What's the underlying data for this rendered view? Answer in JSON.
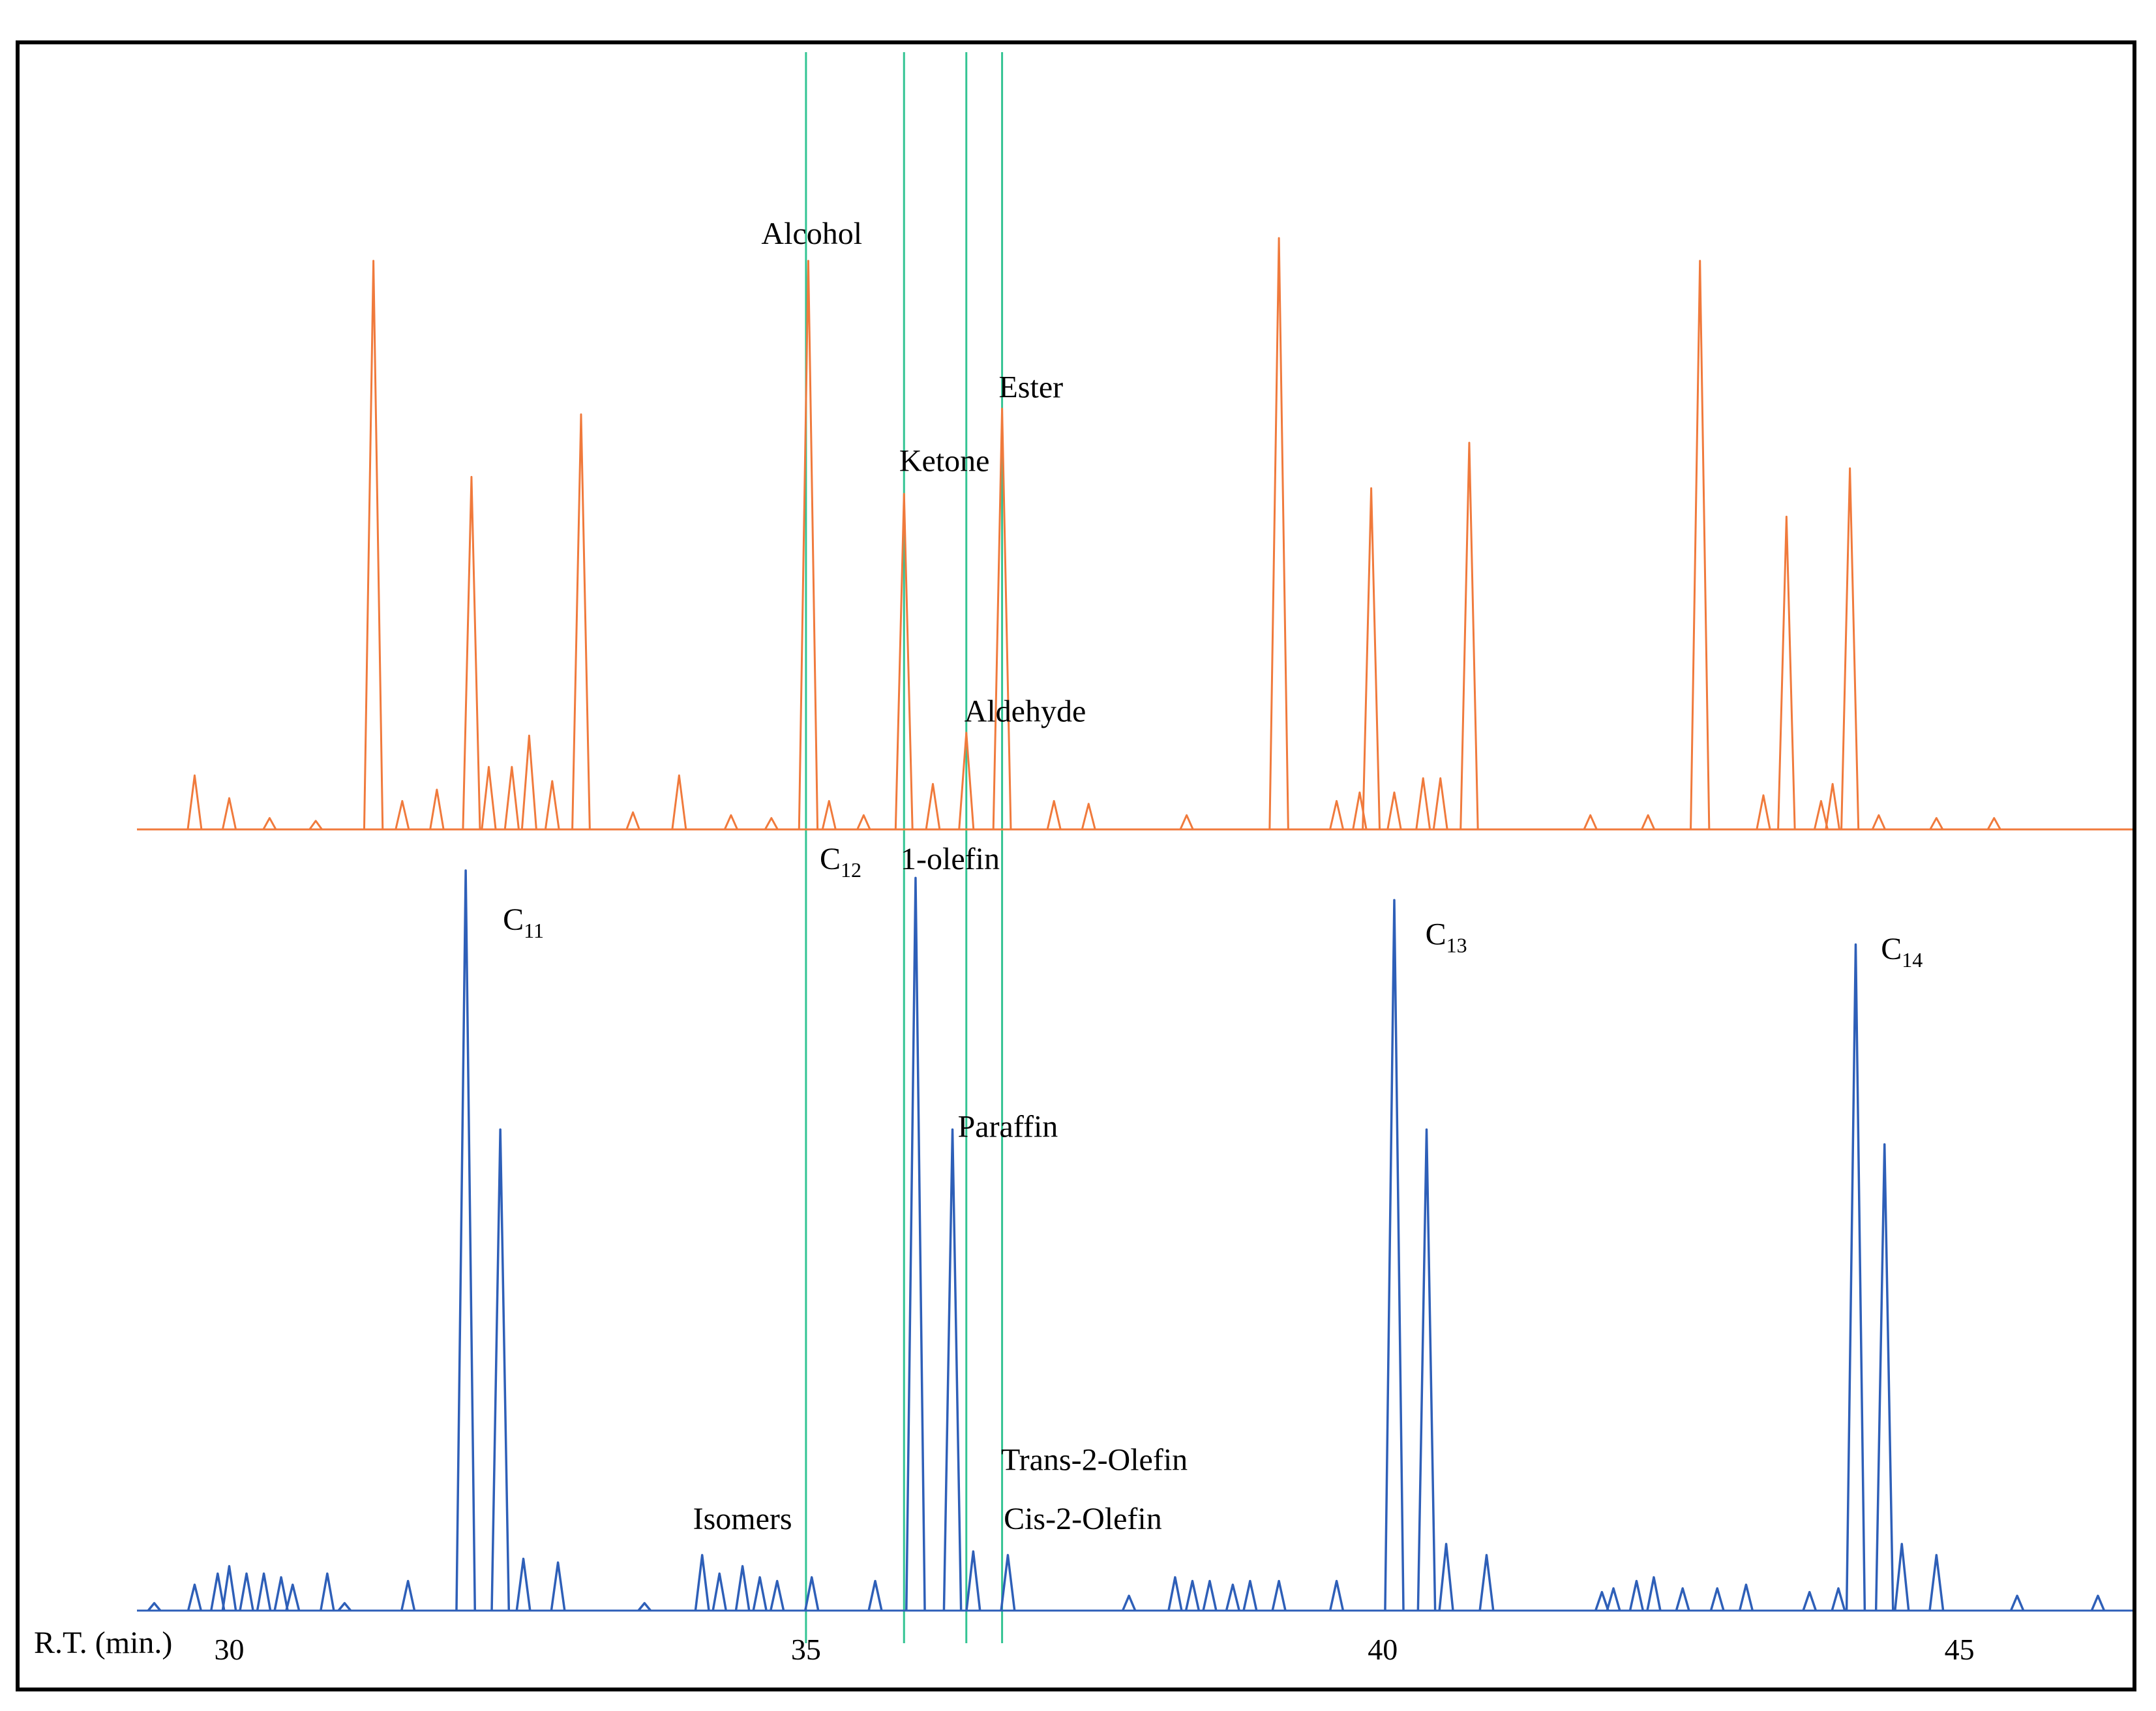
{
  "chart_data": {
    "type": "line",
    "title": "",
    "xlabel": "R.T. (min.)",
    "xlim": [
      29.2,
      46.5
    ],
    "x_ticks": [
      {
        "value": 30,
        "label": "30"
      },
      {
        "value": 35,
        "label": "35"
      },
      {
        "value": 40,
        "label": "40"
      },
      {
        "value": 45,
        "label": "45"
      }
    ],
    "colors": {
      "upper_trace": "#f07a3c",
      "lower_trace": "#2e5fb8",
      "marker_lines": "#33c493",
      "frame": "#000000"
    },
    "marker_lines_rt": [
      35.0,
      35.85,
      36.39,
      36.7
    ],
    "series": [
      {
        "key": "upper",
        "relative_scale_max": 1.0,
        "peaks": [
          {
            "rt": 29.7,
            "h": 0.095
          },
          {
            "rt": 30.0,
            "h": 0.055
          },
          {
            "rt": 30.35,
            "h": 0.02
          },
          {
            "rt": 30.75,
            "h": 0.015
          },
          {
            "rt": 31.25,
            "h": 1.0
          },
          {
            "rt": 31.5,
            "h": 0.05
          },
          {
            "rt": 31.8,
            "h": 0.07
          },
          {
            "rt": 32.1,
            "h": 0.62
          },
          {
            "rt": 32.25,
            "h": 0.11
          },
          {
            "rt": 32.45,
            "h": 0.11
          },
          {
            "rt": 32.6,
            "h": 0.165
          },
          {
            "rt": 32.8,
            "h": 0.085
          },
          {
            "rt": 33.05,
            "h": 0.73
          },
          {
            "rt": 33.5,
            "h": 0.03
          },
          {
            "rt": 33.9,
            "h": 0.095
          },
          {
            "rt": 34.35,
            "h": 0.025
          },
          {
            "rt": 34.7,
            "h": 0.02
          },
          {
            "rt": 35.02,
            "h": 1.0
          },
          {
            "rt": 35.2,
            "h": 0.05
          },
          {
            "rt": 35.5,
            "h": 0.025
          },
          {
            "rt": 35.85,
            "h": 0.59
          },
          {
            "rt": 36.1,
            "h": 0.08
          },
          {
            "rt": 36.39,
            "h": 0.17
          },
          {
            "rt": 36.7,
            "h": 0.74
          },
          {
            "rt": 37.15,
            "h": 0.05
          },
          {
            "rt": 37.45,
            "h": 0.045
          },
          {
            "rt": 38.3,
            "h": 0.025
          },
          {
            "rt": 39.1,
            "h": 1.04
          },
          {
            "rt": 39.6,
            "h": 0.05
          },
          {
            "rt": 39.8,
            "h": 0.065
          },
          {
            "rt": 39.9,
            "h": 0.6
          },
          {
            "rt": 40.1,
            "h": 0.065
          },
          {
            "rt": 40.35,
            "h": 0.09
          },
          {
            "rt": 40.5,
            "h": 0.09
          },
          {
            "rt": 40.75,
            "h": 0.68
          },
          {
            "rt": 41.8,
            "h": 0.025
          },
          {
            "rt": 42.3,
            "h": 0.025
          },
          {
            "rt": 42.75,
            "h": 1.0
          },
          {
            "rt": 43.3,
            "h": 0.06
          },
          {
            "rt": 43.5,
            "h": 0.55
          },
          {
            "rt": 43.8,
            "h": 0.05
          },
          {
            "rt": 43.9,
            "h": 0.08
          },
          {
            "rt": 44.05,
            "h": 0.635
          },
          {
            "rt": 44.3,
            "h": 0.025
          },
          {
            "rt": 44.8,
            "h": 0.02
          },
          {
            "rt": 45.3,
            "h": 0.02
          }
        ]
      },
      {
        "key": "lower",
        "relative_scale_max": 1.0,
        "peaks": [
          {
            "rt": 29.35,
            "h": 0.01
          },
          {
            "rt": 29.7,
            "h": 0.035
          },
          {
            "rt": 29.9,
            "h": 0.05
          },
          {
            "rt": 30.0,
            "h": 0.06
          },
          {
            "rt": 30.15,
            "h": 0.05
          },
          {
            "rt": 30.3,
            "h": 0.05
          },
          {
            "rt": 30.45,
            "h": 0.045
          },
          {
            "rt": 30.55,
            "h": 0.035
          },
          {
            "rt": 30.85,
            "h": 0.05
          },
          {
            "rt": 31.0,
            "h": 0.01
          },
          {
            "rt": 31.55,
            "h": 0.04
          },
          {
            "rt": 32.05,
            "h": 1.0
          },
          {
            "rt": 32.35,
            "h": 0.65
          },
          {
            "rt": 32.55,
            "h": 0.07
          },
          {
            "rt": 32.85,
            "h": 0.065
          },
          {
            "rt": 33.6,
            "h": 0.01
          },
          {
            "rt": 34.1,
            "h": 0.075
          },
          {
            "rt": 34.25,
            "h": 0.05
          },
          {
            "rt": 34.45,
            "h": 0.06
          },
          {
            "rt": 34.6,
            "h": 0.045
          },
          {
            "rt": 34.75,
            "h": 0.04
          },
          {
            "rt": 35.05,
            "h": 0.045
          },
          {
            "rt": 35.6,
            "h": 0.04
          },
          {
            "rt": 35.95,
            "h": 0.99
          },
          {
            "rt": 36.27,
            "h": 0.65
          },
          {
            "rt": 36.45,
            "h": 0.08
          },
          {
            "rt": 36.75,
            "h": 0.075
          },
          {
            "rt": 37.8,
            "h": 0.02
          },
          {
            "rt": 38.2,
            "h": 0.045
          },
          {
            "rt": 38.35,
            "h": 0.04
          },
          {
            "rt": 38.5,
            "h": 0.04
          },
          {
            "rt": 38.7,
            "h": 0.035
          },
          {
            "rt": 38.85,
            "h": 0.04
          },
          {
            "rt": 39.1,
            "h": 0.04
          },
          {
            "rt": 39.6,
            "h": 0.04
          },
          {
            "rt": 40.1,
            "h": 0.96
          },
          {
            "rt": 40.38,
            "h": 0.65
          },
          {
            "rt": 40.55,
            "h": 0.09
          },
          {
            "rt": 40.9,
            "h": 0.075
          },
          {
            "rt": 41.9,
            "h": 0.025
          },
          {
            "rt": 42.0,
            "h": 0.03
          },
          {
            "rt": 42.2,
            "h": 0.04
          },
          {
            "rt": 42.35,
            "h": 0.045
          },
          {
            "rt": 42.6,
            "h": 0.03
          },
          {
            "rt": 42.9,
            "h": 0.03
          },
          {
            "rt": 43.15,
            "h": 0.035
          },
          {
            "rt": 43.7,
            "h": 0.025
          },
          {
            "rt": 43.95,
            "h": 0.03
          },
          {
            "rt": 44.1,
            "h": 0.9
          },
          {
            "rt": 44.35,
            "h": 0.63
          },
          {
            "rt": 44.5,
            "h": 0.09
          },
          {
            "rt": 44.8,
            "h": 0.075
          },
          {
            "rt": 45.5,
            "h": 0.02
          },
          {
            "rt": 46.2,
            "h": 0.02
          }
        ]
      }
    ],
    "annotations": [
      {
        "key": "alcohol",
        "text": "Alcohol",
        "sub": "",
        "trace": "upper",
        "rt": 35.05,
        "h": 1.03
      },
      {
        "key": "ester",
        "text": "Ester",
        "sub": "",
        "trace": "upper",
        "rt": 36.95,
        "h": 0.76
      },
      {
        "key": "ketone",
        "text": "Ketone",
        "sub": "",
        "trace": "upper",
        "rt": 36.2,
        "h": 0.63
      },
      {
        "key": "aldehyde",
        "text": "Aldehyde",
        "sub": "",
        "trace": "upper",
        "rt": 36.9,
        "h": 0.19
      },
      {
        "key": "c12",
        "text": "C",
        "sub": "12",
        "trace": "upper",
        "rt": 35.3,
        "h": -0.07
      },
      {
        "key": "one-olefin",
        "text": "1-olefin",
        "sub": "",
        "trace": "upper",
        "rt": 36.25,
        "h": -0.07
      },
      {
        "key": "c11",
        "text": "C",
        "sub": "11",
        "trace": "lower",
        "rt": 32.55,
        "h": 0.92
      },
      {
        "key": "c13",
        "text": "C",
        "sub": "13",
        "trace": "lower",
        "rt": 40.55,
        "h": 0.9
      },
      {
        "key": "c14",
        "text": "C",
        "sub": "14",
        "trace": "lower",
        "rt": 44.5,
        "h": 0.88
      },
      {
        "key": "paraffin",
        "text": "Paraffin",
        "sub": "",
        "trace": "lower",
        "rt": 36.75,
        "h": 0.64
      },
      {
        "key": "isomers",
        "text": "Isomers",
        "sub": "",
        "trace": "lower",
        "rt": 34.45,
        "h": 0.11
      },
      {
        "key": "trans-2-olefin",
        "text": "Trans-2-Olefin",
        "sub": "",
        "trace": "lower",
        "rt": 37.5,
        "h": 0.19
      },
      {
        "key": "cis-2-olefin",
        "text": "Cis-2-Olefin",
        "sub": "",
        "trace": "lower",
        "rt": 37.4,
        "h": 0.11
      }
    ]
  }
}
